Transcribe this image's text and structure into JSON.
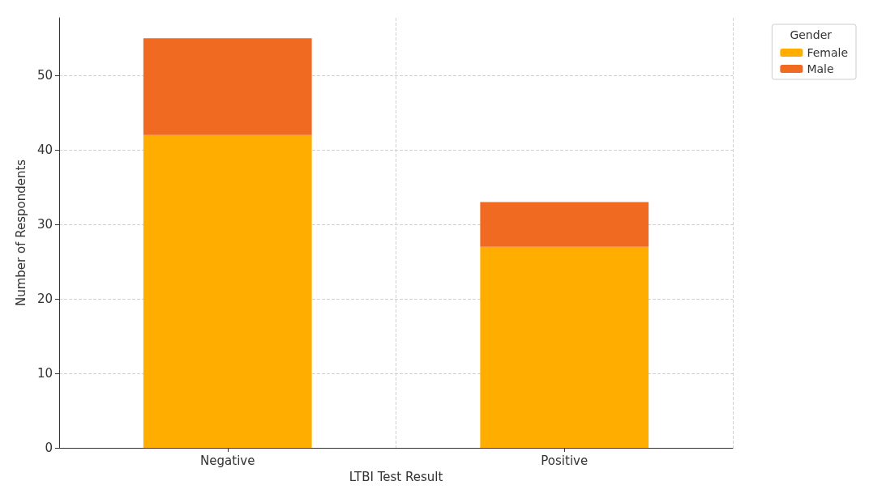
{
  "chart_data": {
    "type": "bar",
    "xlabel": "LTBI Test Result",
    "ylabel": "Number of Respondents",
    "legend_title": "Gender",
    "categories": [
      "Negative",
      "Positive"
    ],
    "series": [
      {
        "name": "Female",
        "color": "#ffae00",
        "values": [
          42,
          27
        ]
      },
      {
        "name": "Male",
        "color": "#f06a22",
        "values": [
          13,
          6
        ]
      }
    ],
    "stacked": true,
    "ylim": [
      0,
      57.75
    ],
    "yticks": [
      0,
      10,
      20,
      30,
      40,
      50
    ],
    "grid": true,
    "legend": "top right"
  }
}
